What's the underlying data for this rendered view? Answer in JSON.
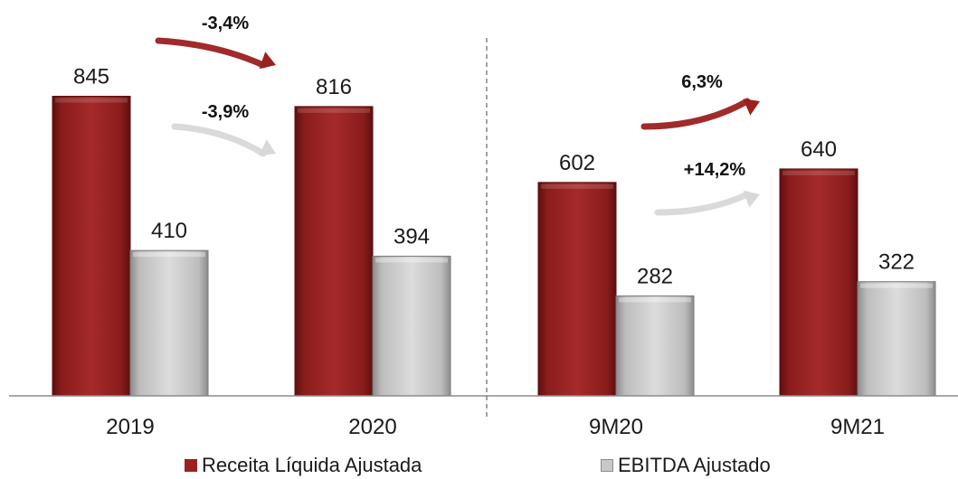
{
  "chart_data": {
    "type": "bar",
    "categories": [
      "2019",
      "2020",
      "9M20",
      "9M21"
    ],
    "series": [
      {
        "name": "Receita Líquida Ajustada",
        "values": [
          845,
          816,
          602,
          640
        ],
        "color": "#9b2020"
      },
      {
        "name": "EBITDA Ajustado",
        "values": [
          410,
          394,
          282,
          322
        ],
        "color": "#c8c8c8"
      }
    ],
    "title": "",
    "xlabel": "",
    "ylabel": "",
    "ylim": [
      0,
      900
    ],
    "grid": false,
    "legend": "bottom",
    "annotations": [
      {
        "text": "-3,4%",
        "series": "Receita Líquida Ajustada",
        "from": "2019",
        "to": "2020",
        "color": "#9b2020"
      },
      {
        "text": "-3,9%",
        "series": "EBITDA Ajustado",
        "from": "2019",
        "to": "2020",
        "color": "#d8d8d8"
      },
      {
        "text": "6,3%",
        "series": "Receita Líquida Ajustada",
        "from": "9M20",
        "to": "9M21",
        "color": "#9b2020"
      },
      {
        "text": "+14,2%",
        "series": "EBITDA Ajustado",
        "from": "9M20",
        "to": "9M21",
        "color": "#d8d8d8"
      }
    ],
    "separator": "dashed line between 2020 and 9M20"
  }
}
